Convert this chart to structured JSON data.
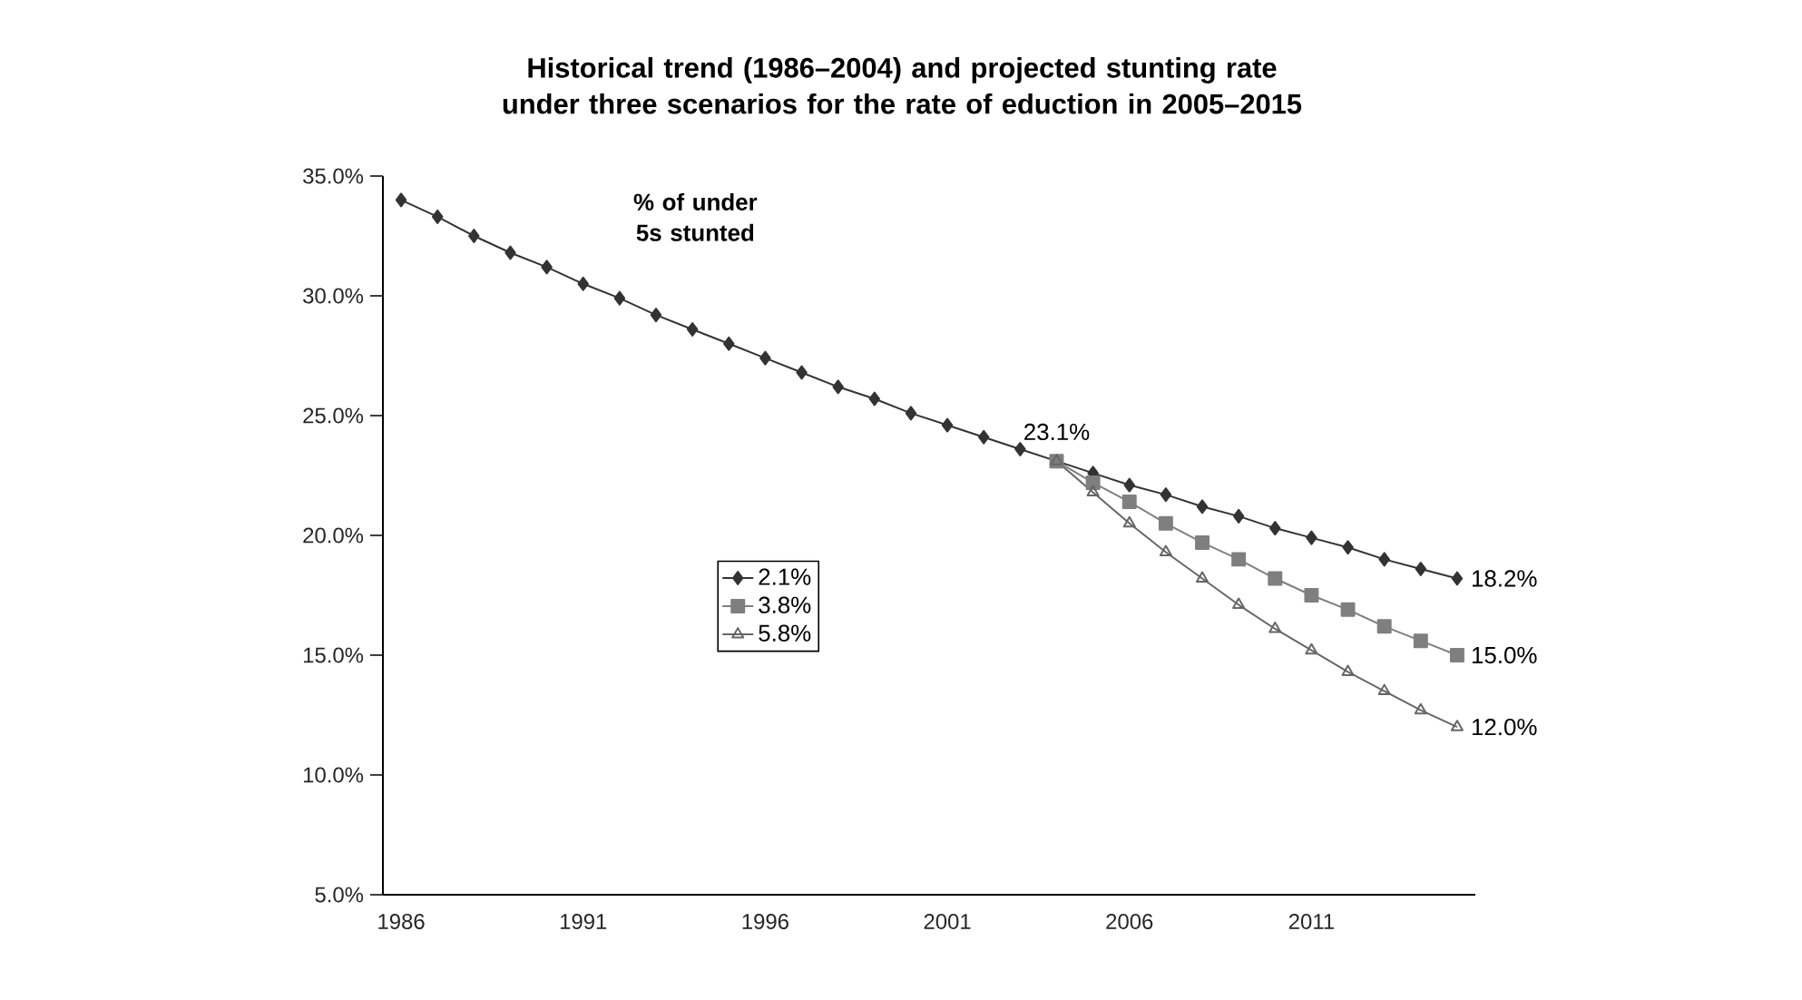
{
  "chart_data": {
    "type": "line",
    "title": "Historical trend (1986–2004) and projected stunting rate under three scenarios for the rate of eduction in 2005–2015",
    "ylabel": "% of under 5s stunted",
    "categories": [
      "1986",
      null,
      null,
      null,
      null,
      "1991",
      null,
      null,
      null,
      null,
      "1996",
      null,
      null,
      null,
      null,
      "2001",
      null,
      null,
      null,
      null,
      "2006",
      null,
      null,
      null,
      null,
      "2011",
      null,
      null,
      null,
      null
    ],
    "series": [
      {
        "name": "2.1%",
        "color": "#333333",
        "marker": "diamond",
        "values": [
          34.0,
          33.3,
          32.5,
          31.8,
          31.2,
          30.5,
          29.9,
          29.2,
          28.6,
          28.0,
          27.4,
          26.8,
          26.2,
          25.7,
          25.1,
          24.6,
          24.1,
          23.6,
          23.1,
          22.6,
          22.1,
          21.7,
          21.2,
          20.8,
          20.3,
          19.9,
          19.5,
          19.0,
          18.6,
          18.2
        ],
        "value_labels": [
          null,
          null,
          null,
          null,
          null,
          null,
          null,
          null,
          null,
          null,
          null,
          null,
          null,
          null,
          null,
          null,
          null,
          null,
          "23.1%",
          null,
          null,
          null,
          null,
          null,
          null,
          null,
          null,
          null,
          null,
          "18.2%"
        ]
      },
      {
        "name": "3.8%",
        "color": "#7f7f7f",
        "marker": "square",
        "values": [
          null,
          null,
          null,
          null,
          null,
          null,
          null,
          null,
          null,
          null,
          null,
          null,
          null,
          null,
          null,
          null,
          null,
          null,
          23.1,
          22.2,
          21.4,
          20.5,
          19.7,
          19.0,
          18.2,
          17.5,
          16.9,
          16.2,
          15.6,
          15.0
        ],
        "value_labels": [
          null,
          null,
          null,
          null,
          null,
          null,
          null,
          null,
          null,
          null,
          null,
          null,
          null,
          null,
          null,
          null,
          null,
          null,
          null,
          null,
          null,
          null,
          null,
          null,
          null,
          null,
          null,
          null,
          null,
          "15.0%"
        ]
      },
      {
        "name": "5.8%",
        "color": "#666666",
        "marker": "triangle",
        "values": [
          null,
          null,
          null,
          null,
          null,
          null,
          null,
          null,
          null,
          null,
          null,
          null,
          null,
          null,
          null,
          null,
          null,
          null,
          23.1,
          21.8,
          20.5,
          19.3,
          18.2,
          17.1,
          16.1,
          15.2,
          14.3,
          13.5,
          12.7,
          12.0
        ],
        "value_labels": [
          null,
          null,
          null,
          null,
          null,
          null,
          null,
          null,
          null,
          null,
          null,
          null,
          null,
          null,
          null,
          null,
          null,
          null,
          null,
          null,
          null,
          null,
          null,
          null,
          null,
          null,
          null,
          null,
          null,
          "12.0%"
        ]
      }
    ],
    "ylim": [
      5,
      35
    ],
    "yticks": [
      {
        "value": 5,
        "label": "5.0%"
      },
      {
        "value": 10,
        "label": "10.0%"
      },
      {
        "value": 15,
        "label": "15.0%"
      },
      {
        "value": 20,
        "label": "20.0%"
      },
      {
        "value": 25,
        "label": "25.0%"
      },
      {
        "value": 30,
        "label": "30.0%"
      },
      {
        "value": 35,
        "label": "35.0%"
      }
    ],
    "grid": false,
    "legend": "center",
    "line_style": "solid"
  }
}
